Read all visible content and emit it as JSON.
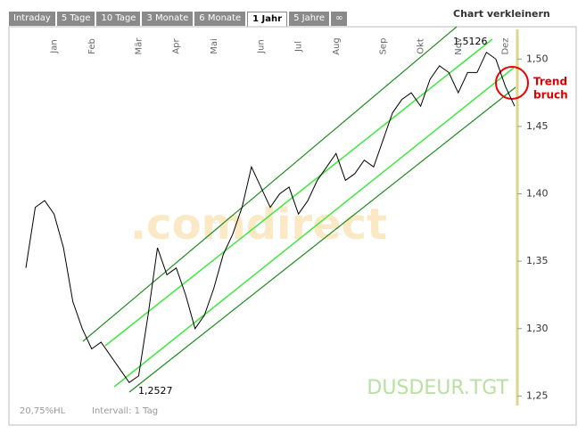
{
  "tabs": [
    "Intraday",
    "5 Tage",
    "10 Tage",
    "3 Monate",
    "6 Monate",
    "1 Jahr",
    "5 Jahre",
    "∞"
  ],
  "shrink_link": "Chart verkleinern",
  "chart_data": {
    "type": "line",
    "categories": [
      null,
      null,
      null,
      "Jan",
      null,
      null,
      null,
      "Feb",
      null,
      null,
      null,
      null,
      "Mär",
      null,
      null,
      null,
      "Apr",
      null,
      null,
      null,
      "Mai",
      null,
      null,
      null,
      null,
      "Jun",
      null,
      null,
      null,
      "Jul",
      null,
      null,
      null,
      "Aug",
      null,
      null,
      null,
      null,
      "Sep",
      null,
      null,
      null,
      "Okt",
      null,
      null,
      null,
      "Nov",
      null,
      null,
      null,
      null,
      "Dez",
      null
    ],
    "series": [
      {
        "name": "DUSDEUR.TGT",
        "color": "#000000",
        "values": [
          1.345,
          1.39,
          1.395,
          1.385,
          1.36,
          1.32,
          1.3,
          1.285,
          1.29,
          1.28,
          1.27,
          1.26,
          1.265,
          1.31,
          1.36,
          1.34,
          1.345,
          1.325,
          1.3,
          1.31,
          1.33,
          1.355,
          1.37,
          1.39,
          1.42,
          1.405,
          1.39,
          1.4,
          1.405,
          1.385,
          1.395,
          1.41,
          1.42,
          1.43,
          1.41,
          1.415,
          1.425,
          1.42,
          1.44,
          1.46,
          1.47,
          1.475,
          1.465,
          1.485,
          1.495,
          1.49,
          1.475,
          1.49,
          1.49,
          1.505,
          1.5,
          1.48,
          1.465
        ]
      }
    ],
    "ylim": [
      1.243,
      1.522
    ],
    "yticks": [
      {
        "value": 1.25,
        "label": "1,25"
      },
      {
        "value": 1.3,
        "label": "1,30"
      },
      {
        "value": 1.35,
        "label": "1,35"
      },
      {
        "value": 1.4,
        "label": "1,40"
      },
      {
        "value": 1.45,
        "label": "1,45"
      },
      {
        "value": 1.5,
        "label": "1,50"
      }
    ],
    "annotations": {
      "high": "1,5126",
      "low": "1,2527",
      "trend": [
        "Trend",
        "bruch"
      ],
      "watermark": ".comdirect",
      "symbol": "DUSDEUR.TGT",
      "hl": "20,75%HL",
      "interval": "Intervall: 1 Tag"
    }
  }
}
